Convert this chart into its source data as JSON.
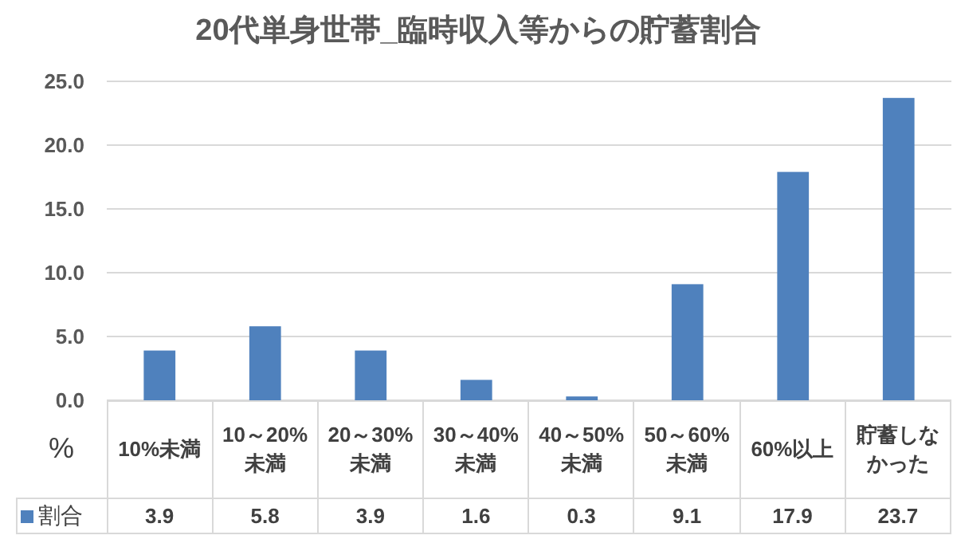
{
  "chart_data": {
    "type": "bar",
    "title": "20代単身世帯_臨時収入等からの貯蓄割合",
    "ylabel": "%",
    "categories": [
      "10%未満",
      "10～20%未満",
      "20～30%未満",
      "30～40%未満",
      "40～50%未満",
      "50～60%未満",
      "60%以上",
      "貯蓄しなかった"
    ],
    "series": [
      {
        "name": "割合",
        "color": "#4f81bd",
        "values": [
          3.9,
          5.8,
          3.9,
          1.6,
          0.3,
          9.1,
          17.9,
          23.7
        ]
      }
    ],
    "ylim": [
      0,
      25
    ],
    "yticks": [
      {
        "value": 0,
        "label": "0.0"
      },
      {
        "value": 5,
        "label": "5.0"
      },
      {
        "value": 10,
        "label": "10.0"
      },
      {
        "value": 15,
        "label": "15.0"
      },
      {
        "value": 20,
        "label": "20.0"
      },
      {
        "value": 25,
        "label": "25.0"
      }
    ],
    "grid": "y",
    "data_labels": true,
    "legend": "bottom left"
  }
}
